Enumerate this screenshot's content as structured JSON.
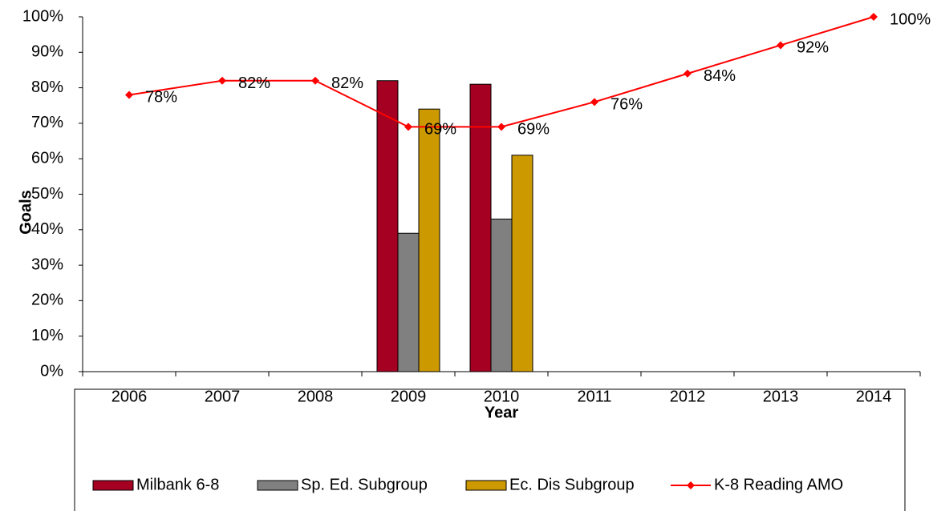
{
  "chart_data": {
    "type": "bar",
    "x_label": "Year",
    "y_label": "Goals",
    "categories": [
      "2006",
      "2007",
      "2008",
      "2009",
      "2010",
      "2011",
      "2012",
      "2013",
      "2014"
    ],
    "ylim": [
      0,
      100
    ],
    "yticks": [
      {
        "value": 0,
        "label": "0%"
      },
      {
        "value": 10,
        "label": "10%"
      },
      {
        "value": 20,
        "label": "20%"
      },
      {
        "value": 30,
        "label": "30%"
      },
      {
        "value": 40,
        "label": "40%"
      },
      {
        "value": 50,
        "label": "50%"
      },
      {
        "value": 60,
        "label": "60%"
      },
      {
        "value": 70,
        "label": "70%"
      },
      {
        "value": 80,
        "label": "80%"
      },
      {
        "value": 90,
        "label": "90%"
      },
      {
        "value": 100,
        "label": "100%"
      }
    ],
    "series": [
      {
        "name": "Milbank 6-8",
        "type": "bar",
        "color": "#a50021",
        "values": [
          null,
          null,
          null,
          82,
          81,
          null,
          null,
          null,
          null
        ]
      },
      {
        "name": "Sp. Ed. Subgroup",
        "type": "bar",
        "color": "#808080",
        "values": [
          null,
          null,
          null,
          39,
          43,
          null,
          null,
          null,
          null
        ]
      },
      {
        "name": "Ec. Dis Subgroup",
        "type": "bar",
        "color": "#cc9900",
        "values": [
          null,
          null,
          null,
          74,
          61,
          null,
          null,
          null,
          null
        ]
      },
      {
        "name": "K-8 Reading AMO",
        "type": "line",
        "color": "#ff0000",
        "values": [
          78,
          82,
          82,
          69,
          69,
          76,
          84,
          92,
          100
        ],
        "value_labels": [
          "78%",
          "82%",
          "82%",
          "69%",
          "69%",
          "76%",
          "84%",
          "92%",
          "100%"
        ]
      }
    ]
  }
}
